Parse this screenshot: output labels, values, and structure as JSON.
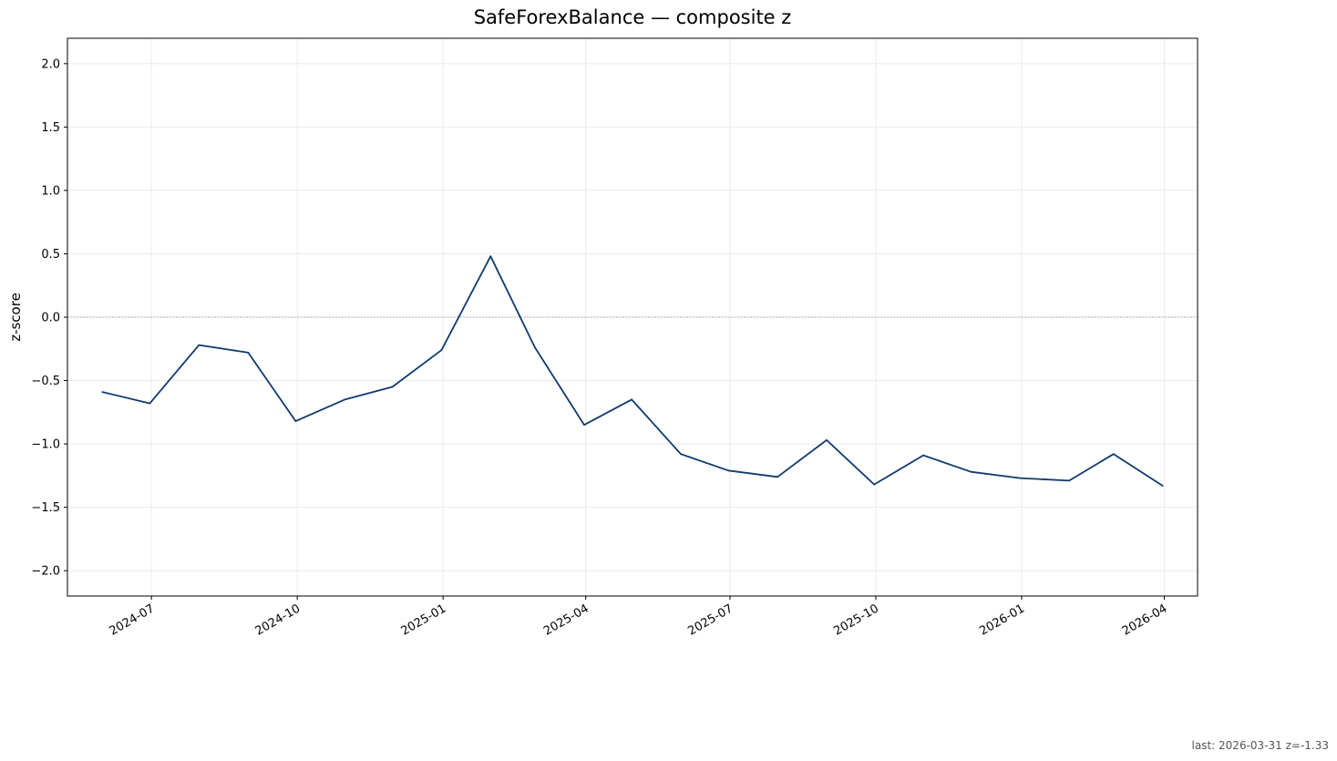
{
  "chart_data": {
    "type": "line",
    "title": "SafeForexBalance — composite z",
    "xlabel": "",
    "ylabel": "z-score",
    "ylim": [
      -2.2,
      2.2
    ],
    "xlim": [
      "2024-05-09",
      "2026-04-22"
    ],
    "yticks": [
      -2.0,
      -1.5,
      -1.0,
      -0.5,
      0.0,
      0.5,
      1.0,
      1.5,
      2.0
    ],
    "yticklabels": [
      "−2.0",
      "−1.5",
      "−1.0",
      "−0.5",
      "0.0",
      "0.5",
      "1.0",
      "1.5",
      "2.0"
    ],
    "xticks": [
      "2024-07-01",
      "2024-10-01",
      "2025-01-01",
      "2025-04-01",
      "2025-07-01",
      "2025-10-01",
      "2026-01-01",
      "2026-04-01"
    ],
    "xticklabels": [
      "2024-07",
      "2024-10",
      "2025-01",
      "2025-04",
      "2025-07",
      "2025-10",
      "2026-01",
      "2026-04"
    ],
    "grid": true,
    "zero_line": true,
    "series": [
      {
        "color": "#0f3a6e",
        "x": [
          "2024-05-31",
          "2024-06-30",
          "2024-07-31",
          "2024-08-31",
          "2024-09-30",
          "2024-10-31",
          "2024-11-30",
          "2024-12-31",
          "2025-01-31",
          "2025-02-28",
          "2025-03-31",
          "2025-04-30",
          "2025-05-31",
          "2025-06-30",
          "2025-07-31",
          "2025-08-31",
          "2025-09-30",
          "2025-10-31",
          "2025-11-30",
          "2025-12-31",
          "2026-01-31",
          "2026-02-28",
          "2026-03-31"
        ],
        "y": [
          -0.59,
          -0.68,
          -0.22,
          -0.28,
          -0.82,
          -0.65,
          -0.55,
          -0.26,
          0.48,
          -0.24,
          -0.85,
          -0.65,
          -1.08,
          -1.21,
          -1.26,
          -0.97,
          -1.32,
          -1.09,
          -1.22,
          -1.27,
          -1.29,
          -1.08,
          -1.33
        ]
      }
    ]
  },
  "footnote": "last: 2026-03-31 z=-1.33"
}
